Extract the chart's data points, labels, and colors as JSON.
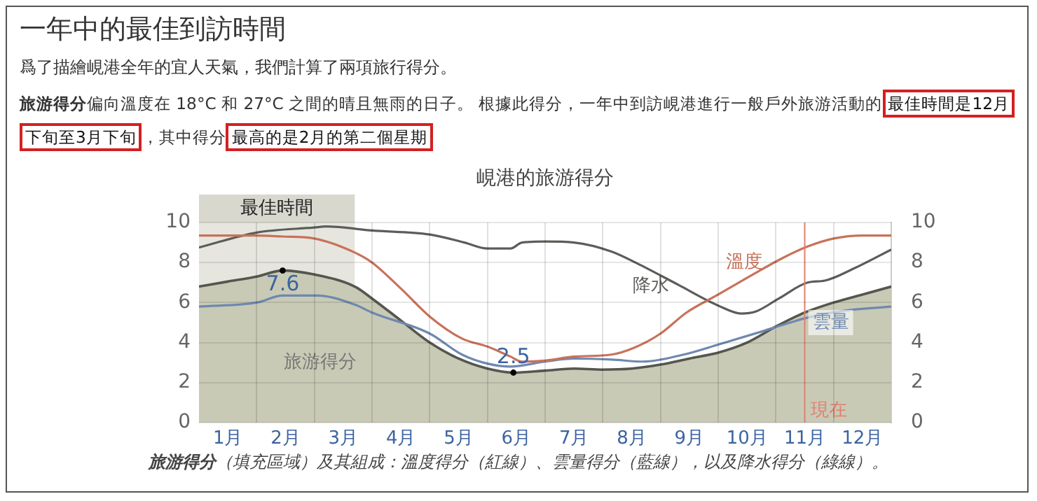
{
  "chart_data": {
    "type": "line",
    "title": "一年中的最佳到訪時間",
    "subtitle": "峴港的旅游得分",
    "annotations": [
      "爲了描繪峴港全年的宜人天氣，我們計算了兩項旅行得分。",
      "旅游得分",
      "偏向溫度在 18°C 和 27°C 之間的晴且無雨的日子。 根據此得分，一年中到訪峴港進行一般戶外旅游活動的",
      "最佳時間是12月下旬至3月下旬",
      "，其中得分",
      "最高的是2月的第二個星期",
      "旅游得分",
      "（填充區域）及其組成：溫度得分（紅線）、雲量得分（藍線），以及降水得分（綠線）。",
      {
        "text": "7.6",
        "x": 1.45,
        "y": 7.6
      },
      {
        "text": "2.5",
        "x": 5.45,
        "y": 2.5
      }
    ],
    "xlim": [
      0,
      12
    ],
    "xticks": [
      {
        "value": 0.5,
        "label": "1月"
      },
      {
        "value": 1,
        "label": null
      },
      {
        "value": 1.5,
        "label": "2月"
      },
      {
        "value": 2,
        "label": null
      },
      {
        "value": 2.5,
        "label": "3月"
      },
      {
        "value": 3,
        "label": null
      },
      {
        "value": 3.5,
        "label": "4月"
      },
      {
        "value": 4,
        "label": null
      },
      {
        "value": 4.5,
        "label": "5月"
      },
      {
        "value": 5,
        "label": null
      },
      {
        "value": 5.5,
        "label": "6月"
      },
      {
        "value": 6,
        "label": null
      },
      {
        "value": 6.5,
        "label": "7月"
      },
      {
        "value": 7,
        "label": null
      },
      {
        "value": 7.5,
        "label": "8月"
      },
      {
        "value": 8,
        "label": null
      },
      {
        "value": 8.5,
        "label": "9月"
      },
      {
        "value": 9,
        "label": null
      },
      {
        "value": 9.5,
        "label": "10月"
      },
      {
        "value": 10,
        "label": null
      },
      {
        "value": 10.5,
        "label": "11月"
      },
      {
        "value": 11,
        "label": null
      },
      {
        "value": 11.5,
        "label": "12月"
      }
    ],
    "ylim": [
      0,
      10
    ],
    "yticks": [
      0,
      2,
      4,
      6,
      8,
      10
    ],
    "y2lim": [
      0,
      10
    ],
    "y2ticks": [
      0,
      2,
      4,
      6,
      8,
      10
    ],
    "grid": true,
    "legend": false,
    "marker": "none",
    "bands": [
      {
        "axis": "x",
        "from": 0,
        "to": 2.7,
        "label": "最佳時間",
        "color": "#e6e6df"
      }
    ],
    "ref_lines": [
      {
        "axis": "x",
        "value": 10.5,
        "label": "現在",
        "color": "#e08070"
      }
    ],
    "series": [
      {
        "name": "旅游得分",
        "type": "area",
        "color": "#55574f",
        "x": [
          0,
          0.5,
          1,
          1.45,
          2,
          2.7,
          3,
          3.5,
          4,
          4.5,
          5,
          5.45,
          6,
          6.5,
          7,
          7.5,
          8,
          8.5,
          9,
          9.5,
          10,
          10.5,
          11,
          11.5,
          12
        ],
        "values": [
          6.8,
          7.05,
          7.3,
          7.6,
          7.4,
          6.8,
          6.2,
          5.1,
          4.0,
          3.2,
          2.7,
          2.5,
          2.6,
          2.7,
          2.65,
          2.7,
          2.9,
          3.2,
          3.5,
          4.0,
          4.8,
          5.5,
          6.0,
          6.4,
          6.8
        ]
      },
      {
        "name": "溫度",
        "type": "line",
        "color": "#c8725a",
        "x": [
          0,
          1,
          1.45,
          2,
          2.7,
          3,
          3.5,
          4,
          4.56,
          5,
          5.4,
          5.6,
          6,
          6.5,
          7.15,
          7.55,
          8,
          8.45,
          9,
          9.6,
          10.1,
          10.55,
          11,
          11.5,
          12
        ],
        "values": [
          9.35,
          9.35,
          9.3,
          9.2,
          8.5,
          8.0,
          6.7,
          5.3,
          4.2,
          3.8,
          3.3,
          3.05,
          3.1,
          3.3,
          3.4,
          3.75,
          4.45,
          5.5,
          6.4,
          7.4,
          8.2,
          8.8,
          9.2,
          9.35,
          9.35
        ]
      },
      {
        "name": "雲量",
        "type": "line",
        "color": "#6f88b0",
        "x": [
          0,
          1,
          1.45,
          2.05,
          2.7,
          3,
          4,
          4.56,
          5,
          5.4,
          6,
          6.5,
          7.15,
          7.7,
          8.4,
          9,
          9.75,
          10.25,
          10.55,
          11.2,
          12
        ],
        "values": [
          5.8,
          6.0,
          6.35,
          6.35,
          5.9,
          5.5,
          4.45,
          3.4,
          2.95,
          2.8,
          3.05,
          3.2,
          3.15,
          3.05,
          3.4,
          3.9,
          4.55,
          5.0,
          5.25,
          5.6,
          5.8
        ]
      },
      {
        "name": "降水",
        "type": "line",
        "color": "#5a5e58",
        "x": [
          0,
          1,
          2,
          2.2,
          3,
          4,
          4.6,
          5,
          5.4,
          5.6,
          6,
          6.5,
          7.15,
          7.6,
          8.3,
          9,
          9.4,
          9.65,
          10.05,
          10.55,
          10.85,
          11.35,
          12
        ],
        "values": [
          8.75,
          9.5,
          9.75,
          9.8,
          9.6,
          9.4,
          9.0,
          8.7,
          8.7,
          9.0,
          9.05,
          9.0,
          8.55,
          7.95,
          6.9,
          5.85,
          5.45,
          5.55,
          6.2,
          7.0,
          7.1,
          7.7,
          8.65
        ]
      }
    ]
  }
}
